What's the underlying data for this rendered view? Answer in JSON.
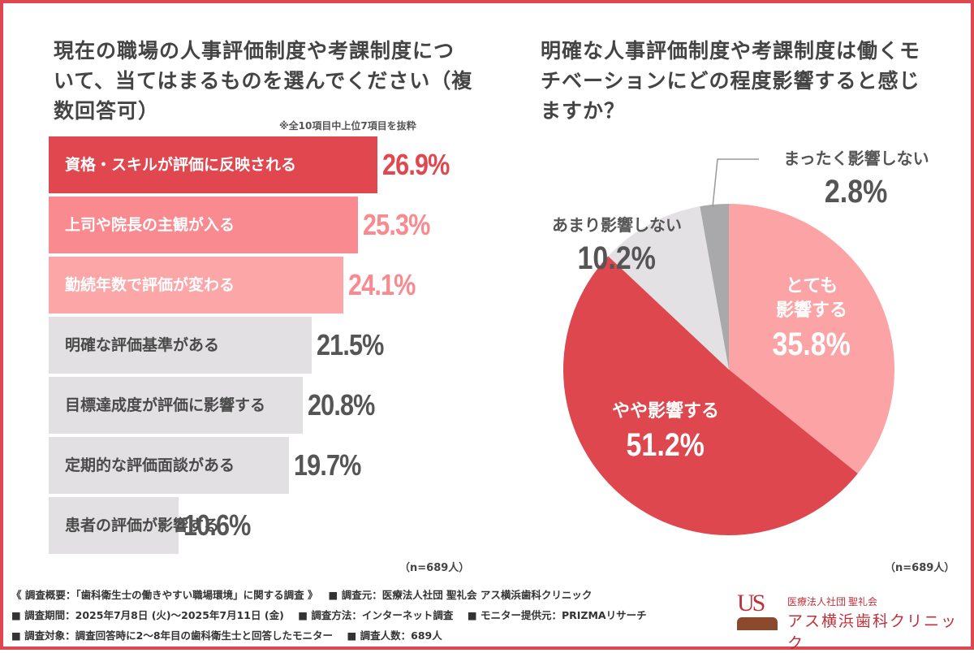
{
  "left": {
    "title": "現在の職場の人事評価制度や考課制度について、当てはまるものを選んでください（複数回答可）",
    "note": "※全10項目中上位7項目を抜粋",
    "n": "（n=689人）"
  },
  "right": {
    "title": "明確な人事評価制度や考課制度は働くモチベーションにどの程度影響すると感じますか？",
    "n": "（n=689人）"
  },
  "colors": {
    "accent": "#e0464e",
    "bar1": "#e0474f",
    "bar2": "#f98a8f",
    "bar3": "#fca6a8",
    "bar_other": "#e2e0e2",
    "pie_very": "#fca3a6",
    "pie_some": "#df474f",
    "pie_little": "#e3e1e4",
    "pie_none": "#a9a8ab"
  },
  "chart_data": [
    {
      "type": "bar",
      "orientation": "horizontal",
      "title": "現在の職場の人事評価制度や考課制度について、当てはまるものを選んでください（複数回答可）",
      "categories": [
        "資格・スキルが評価に反映される",
        "上司や院長の主観が入る",
        "勤続年数で評価が変わる",
        "明確な評価基準がある",
        "目標達成度が評価に影響する",
        "定期的な評価面談がある",
        "患者の評価が影響する"
      ],
      "values": [
        26.9,
        25.3,
        24.1,
        21.5,
        20.8,
        19.7,
        10.6
      ],
      "labels": [
        "26.9%",
        "25.3%",
        "24.1%",
        "21.5%",
        "20.8%",
        "19.7%",
        "10.6%"
      ],
      "unit": "%"
    },
    {
      "type": "pie",
      "title": "明確な人事評価制度や考課制度は働くモチベーションにどの程度影響すると感じますか？",
      "categories": [
        "とても影響する",
        "やや影響する",
        "あまり影響しない",
        "まったく影響しない"
      ],
      "values": [
        35.8,
        51.2,
        10.2,
        2.8
      ],
      "labels": [
        "35.8%",
        "51.2%",
        "10.2%",
        "2.8%"
      ],
      "label_lines": [
        [
          "とても",
          "影響する"
        ],
        [
          "やや影響する"
        ],
        [
          "あまり影響しない"
        ],
        [
          "まったく影響しない"
        ]
      ]
    }
  ],
  "footer": {
    "line1a": "《 調査概要：「歯科衛生士の働きやすい職場環境」に関する調査 》",
    "line1b": "■ 調査元：医療法人社団 聖礼会 アス横浜歯科クリニック",
    "line2a": "■ 調査期間：2025年7月8日 (火)〜2025年7月11日 (金)",
    "line2b": "■ 調査方法：インターネット調査",
    "line2c": "■ モニター提供元：PRIZMAリサーチ",
    "line3a": "■ 調査対象：調査回答時に2〜8年目の歯科衛生士と回答したモニター",
    "line3b": "■ 調査人数：689人"
  },
  "logo": {
    "mark": "US",
    "org": "医療法人社団 聖礼会",
    "name": "アス横浜歯科クリニック"
  }
}
